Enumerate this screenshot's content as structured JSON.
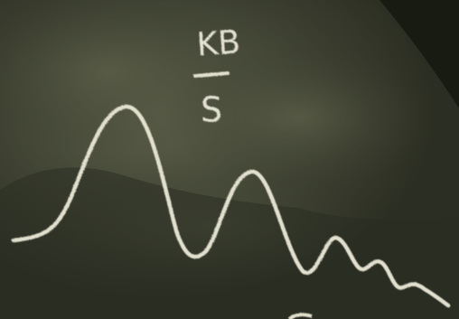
{
  "chalkboard": {
    "numerator": "KB",
    "denominator": "S"
  }
}
